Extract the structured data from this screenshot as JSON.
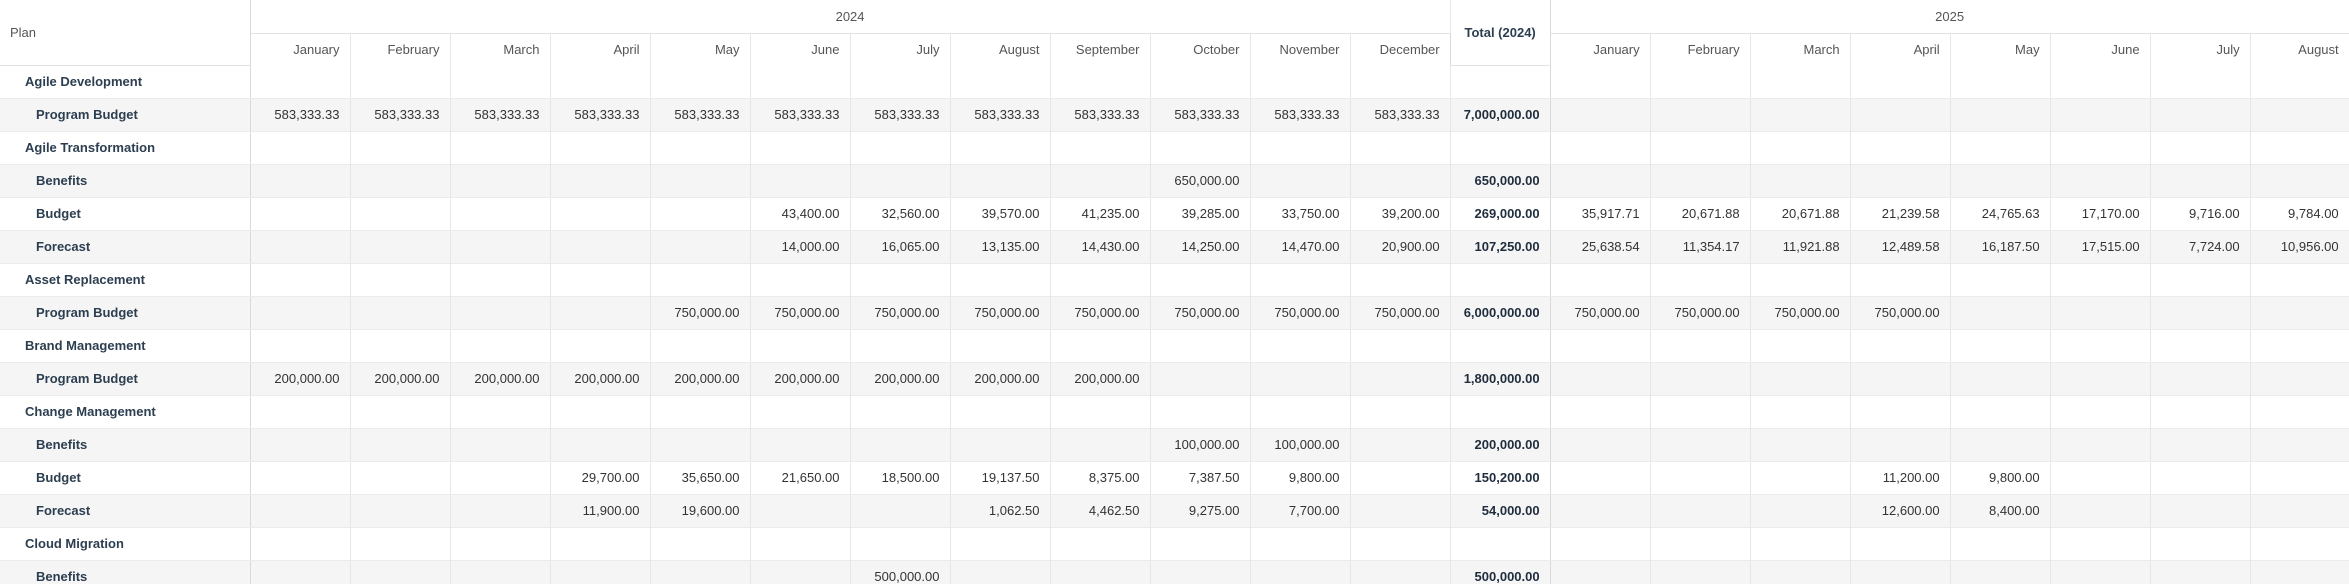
{
  "header": {
    "plan_label": "Plan",
    "years": [
      "2024",
      "2025"
    ],
    "total_label": "Total (2024)",
    "months_2024": [
      "January",
      "February",
      "March",
      "April",
      "May",
      "June",
      "July",
      "August",
      "September",
      "October",
      "November",
      "December"
    ],
    "months_2025": [
      "January",
      "February",
      "March",
      "April",
      "May",
      "June",
      "July",
      "August"
    ]
  },
  "rows": [
    {
      "type": "group",
      "label": "Agile Development",
      "v2024": [
        "",
        "",
        "",
        "",
        "",
        "",
        "",
        "",
        "",
        "",
        "",
        ""
      ],
      "total": "",
      "v2025": [
        "",
        "",
        "",
        "",
        "",
        "",
        "",
        ""
      ]
    },
    {
      "type": "child",
      "label": "Program Budget",
      "v2024": [
        "583,333.33",
        "583,333.33",
        "583,333.33",
        "583,333.33",
        "583,333.33",
        "583,333.33",
        "583,333.33",
        "583,333.33",
        "583,333.33",
        "583,333.33",
        "583,333.33",
        "583,333.33"
      ],
      "total": "7,000,000.00",
      "v2025": [
        "",
        "",
        "",
        "",
        "",
        "",
        "",
        ""
      ]
    },
    {
      "type": "group",
      "label": "Agile Transformation",
      "v2024": [
        "",
        "",
        "",
        "",
        "",
        "",
        "",
        "",
        "",
        "",
        "",
        ""
      ],
      "total": "",
      "v2025": [
        "",
        "",
        "",
        "",
        "",
        "",
        "",
        ""
      ]
    },
    {
      "type": "child",
      "label": "Benefits",
      "v2024": [
        "",
        "",
        "",
        "",
        "",
        "",
        "",
        "",
        "",
        "650,000.00",
        "",
        ""
      ],
      "total": "650,000.00",
      "v2025": [
        "",
        "",
        "",
        "",
        "",
        "",
        "",
        ""
      ]
    },
    {
      "type": "child",
      "label": "Budget",
      "v2024": [
        "",
        "",
        "",
        "",
        "",
        "43,400.00",
        "32,560.00",
        "39,570.00",
        "41,235.00",
        "39,285.00",
        "33,750.00",
        "39,200.00"
      ],
      "total": "269,000.00",
      "v2025": [
        "35,917.71",
        "20,671.88",
        "20,671.88",
        "21,239.58",
        "24,765.63",
        "17,170.00",
        "9,716.00",
        "9,784.00"
      ]
    },
    {
      "type": "child",
      "label": "Forecast",
      "v2024": [
        "",
        "",
        "",
        "",
        "",
        "14,000.00",
        "16,065.00",
        "13,135.00",
        "14,430.00",
        "14,250.00",
        "14,470.00",
        "20,900.00"
      ],
      "total": "107,250.00",
      "v2025": [
        "25,638.54",
        "11,354.17",
        "11,921.88",
        "12,489.58",
        "16,187.50",
        "17,515.00",
        "7,724.00",
        "10,956.00"
      ]
    },
    {
      "type": "group",
      "label": "Asset Replacement",
      "v2024": [
        "",
        "",
        "",
        "",
        "",
        "",
        "",
        "",
        "",
        "",
        "",
        ""
      ],
      "total": "",
      "v2025": [
        "",
        "",
        "",
        "",
        "",
        "",
        "",
        ""
      ]
    },
    {
      "type": "child",
      "label": "Program Budget",
      "v2024": [
        "",
        "",
        "",
        "",
        "750,000.00",
        "750,000.00",
        "750,000.00",
        "750,000.00",
        "750,000.00",
        "750,000.00",
        "750,000.00",
        "750,000.00"
      ],
      "total": "6,000,000.00",
      "v2025": [
        "750,000.00",
        "750,000.00",
        "750,000.00",
        "750,000.00",
        "",
        "",
        "",
        ""
      ]
    },
    {
      "type": "group",
      "label": "Brand Management",
      "v2024": [
        "",
        "",
        "",
        "",
        "",
        "",
        "",
        "",
        "",
        "",
        "",
        ""
      ],
      "total": "",
      "v2025": [
        "",
        "",
        "",
        "",
        "",
        "",
        "",
        ""
      ]
    },
    {
      "type": "child",
      "label": "Program Budget",
      "v2024": [
        "200,000.00",
        "200,000.00",
        "200,000.00",
        "200,000.00",
        "200,000.00",
        "200,000.00",
        "200,000.00",
        "200,000.00",
        "200,000.00",
        "",
        "",
        ""
      ],
      "total": "1,800,000.00",
      "v2025": [
        "",
        "",
        "",
        "",
        "",
        "",
        "",
        ""
      ]
    },
    {
      "type": "group",
      "label": "Change Management",
      "v2024": [
        "",
        "",
        "",
        "",
        "",
        "",
        "",
        "",
        "",
        "",
        "",
        ""
      ],
      "total": "",
      "v2025": [
        "",
        "",
        "",
        "",
        "",
        "",
        "",
        ""
      ]
    },
    {
      "type": "child",
      "label": "Benefits",
      "v2024": [
        "",
        "",
        "",
        "",
        "",
        "",
        "",
        "",
        "",
        "100,000.00",
        "100,000.00",
        ""
      ],
      "total": "200,000.00",
      "v2025": [
        "",
        "",
        "",
        "",
        "",
        "",
        "",
        ""
      ]
    },
    {
      "type": "child",
      "label": "Budget",
      "v2024": [
        "",
        "",
        "",
        "29,700.00",
        "35,650.00",
        "21,650.00",
        "18,500.00",
        "19,137.50",
        "8,375.00",
        "7,387.50",
        "9,800.00",
        ""
      ],
      "total": "150,200.00",
      "v2025": [
        "",
        "",
        "",
        "11,200.00",
        "9,800.00",
        "",
        "",
        ""
      ]
    },
    {
      "type": "child",
      "label": "Forecast",
      "v2024": [
        "",
        "",
        "",
        "11,900.00",
        "19,600.00",
        "",
        "",
        "1,062.50",
        "4,462.50",
        "9,275.00",
        "7,700.00",
        ""
      ],
      "total": "54,000.00",
      "v2025": [
        "",
        "",
        "",
        "12,600.00",
        "8,400.00",
        "",
        "",
        ""
      ]
    },
    {
      "type": "group",
      "label": "Cloud Migration",
      "v2024": [
        "",
        "",
        "",
        "",
        "",
        "",
        "",
        "",
        "",
        "",
        "",
        ""
      ],
      "total": "",
      "v2025": [
        "",
        "",
        "",
        "",
        "",
        "",
        "",
        ""
      ]
    },
    {
      "type": "child",
      "label": "Benefits",
      "v2024": [
        "",
        "",
        "",
        "",
        "",
        "",
        "500,000.00",
        "",
        "",
        "",
        "",
        ""
      ],
      "total": "500,000.00",
      "v2025": [
        "",
        "",
        "",
        "",
        "",
        "",
        "",
        ""
      ]
    }
  ]
}
